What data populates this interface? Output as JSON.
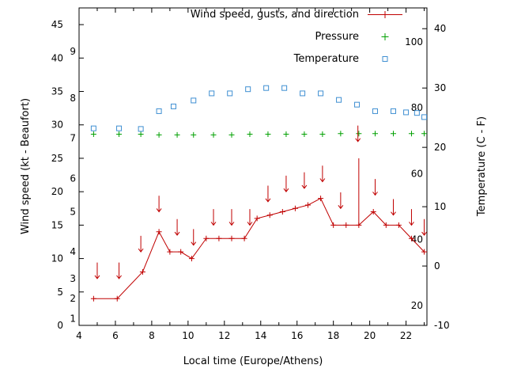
{
  "chart_data": {
    "type": "line",
    "title": "",
    "xlabel": "Local time (Europe/Athens)",
    "ylabel_left": "Wind speed (kt - Beaufort)",
    "ylabel_right": "Temperature (C - F)",
    "x_range": [
      4,
      23.15
    ],
    "x_major_ticks": [
      4,
      6,
      8,
      10,
      12,
      14,
      16,
      18,
      20,
      22
    ],
    "y_left_range": [
      0,
      47.5
    ],
    "y_left_ticks": [
      0,
      5,
      10,
      15,
      20,
      25,
      30,
      35,
      40,
      45
    ],
    "y_right_range": [
      -10,
      43.5
    ],
    "y_right_ticks": [
      -10,
      0,
      10,
      20,
      30,
      40
    ],
    "beaufort_labels": [
      {
        "label": "1",
        "kt": 1
      },
      {
        "label": "2",
        "kt": 4
      },
      {
        "label": "3",
        "kt": 7
      },
      {
        "label": "4",
        "kt": 11
      },
      {
        "label": "5",
        "kt": 17
      },
      {
        "label": "6",
        "kt": 22
      },
      {
        "label": "7",
        "kt": 28
      },
      {
        "label": "8",
        "kt": 34
      },
      {
        "label": "9",
        "kt": 41
      }
    ],
    "fahrenheit_labels": [
      {
        "label": "20",
        "f": 20
      },
      {
        "label": "40",
        "f": 40
      },
      {
        "label": "60",
        "f": 60
      },
      {
        "label": "80",
        "f": 80
      },
      {
        "label": "100",
        "f": 100
      }
    ],
    "colors": {
      "wind": "#c00000",
      "pressure": "#00a000",
      "temperature": "#3f8fd2"
    },
    "legend": [
      {
        "label": "Wind speed, gusts, and direction",
        "series": "wind"
      },
      {
        "label": "Pressure",
        "series": "pressure"
      },
      {
        "label": "Temperature",
        "series": "temperature"
      }
    ],
    "series": {
      "wind": {
        "x": [
          4.8,
          6.1,
          7.5,
          8.4,
          9.0,
          9.6,
          10.2,
          11.0,
          11.7,
          12.4,
          13.1,
          13.8,
          14.5,
          15.2,
          15.9,
          16.6,
          17.3,
          18.0,
          18.7,
          19.4,
          20.2,
          20.9,
          21.6,
          22.3,
          23.0
        ],
        "y_kt": [
          4,
          4,
          8,
          14,
          11,
          11,
          10,
          13,
          13,
          13,
          13,
          16,
          16.5,
          17,
          17.5,
          18,
          19,
          15,
          15,
          15,
          17,
          15,
          15,
          13,
          11
        ]
      },
      "gust_arrows": [
        {
          "x": 5.0,
          "tip": 7
        },
        {
          "x": 6.2,
          "tip": 7
        },
        {
          "x": 7.4,
          "tip": 11
        },
        {
          "x": 8.4,
          "tip": 17
        },
        {
          "x": 9.4,
          "tip": 13.5
        },
        {
          "x": 10.3,
          "tip": 12
        },
        {
          "x": 11.4,
          "tip": 15
        },
        {
          "x": 12.4,
          "tip": 15
        },
        {
          "x": 13.4,
          "tip": 15
        },
        {
          "x": 14.4,
          "tip": 18.5
        },
        {
          "x": 15.4,
          "tip": 20
        },
        {
          "x": 16.4,
          "tip": 20.5
        },
        {
          "x": 17.4,
          "tip": 21.5
        },
        {
          "x": 18.4,
          "tip": 17.5
        },
        {
          "x": 19.35,
          "tip": 27.5
        },
        {
          "x": 20.3,
          "tip": 19.5
        },
        {
          "x": 21.3,
          "tip": 16.5
        },
        {
          "x": 22.3,
          "tip": 15
        },
        {
          "x": 23.0,
          "tip": 13.5
        }
      ],
      "gust_spike": {
        "x": 19.4,
        "from": 15,
        "to": 25
      },
      "pressure": {
        "x": [
          4.8,
          6.2,
          7.4,
          8.4,
          9.4,
          10.3,
          11.4,
          12.4,
          13.4,
          14.4,
          15.4,
          16.4,
          17.4,
          18.4,
          19.4,
          20.3,
          21.3,
          22.3,
          23.0
        ],
        "y_kt": [
          28.6,
          28.6,
          28.6,
          28.5,
          28.5,
          28.5,
          28.5,
          28.5,
          28.6,
          28.6,
          28.6,
          28.6,
          28.6,
          28.7,
          28.7,
          28.7,
          28.7,
          28.7,
          28.7
        ]
      },
      "temperature": {
        "x": [
          4.8,
          6.2,
          7.4,
          8.4,
          9.2,
          10.3,
          11.3,
          12.3,
          13.3,
          14.3,
          15.3,
          16.3,
          17.3,
          18.3,
          19.3,
          20.3,
          21.3,
          22.0,
          22.6,
          23.0
        ],
        "c": [
          23.2,
          23.2,
          23.1,
          26.1,
          26.9,
          27.9,
          29.1,
          29.1,
          29.8,
          30.0,
          30.0,
          29.1,
          29.1,
          28.0,
          27.2,
          26.1,
          26.1,
          25.9,
          25.8,
          25.1
        ]
      }
    }
  }
}
